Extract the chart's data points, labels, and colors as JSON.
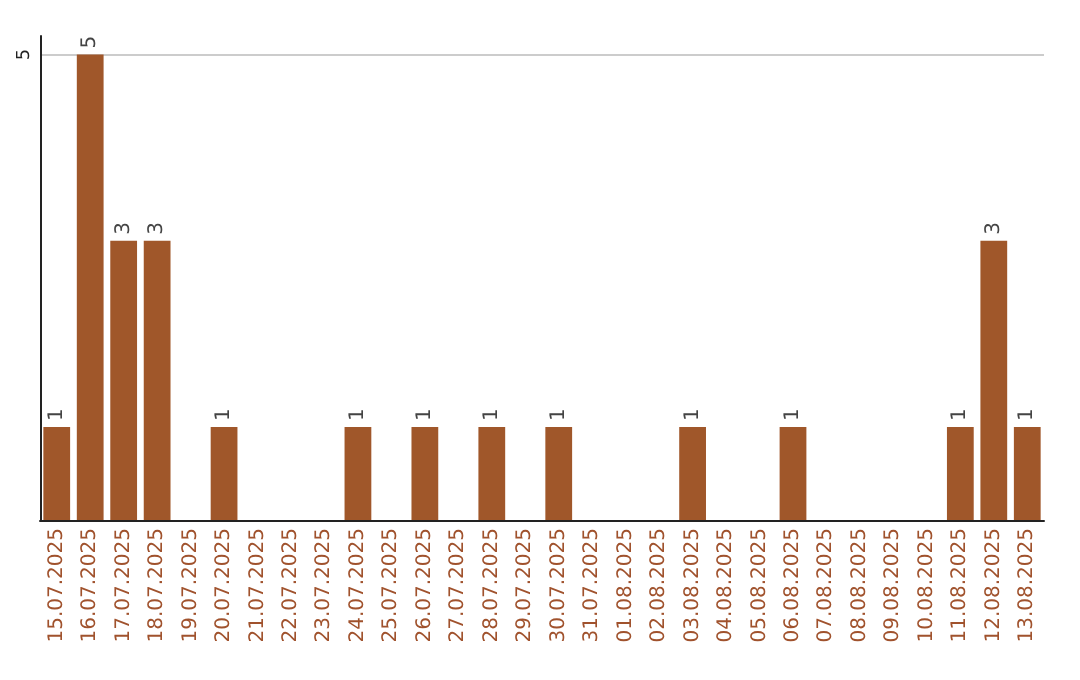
{
  "chart_data": {
    "type": "bar",
    "categories": [
      "15.07.2025",
      "16.07.2025",
      "17.07.2025",
      "18.07.2025",
      "19.07.2025",
      "20.07.2025",
      "21.07.2025",
      "22.07.2025",
      "23.07.2025",
      "24.07.2025",
      "25.07.2025",
      "26.07.2025",
      "27.07.2025",
      "28.07.2025",
      "29.07.2025",
      "30.07.2025",
      "31.07.2025",
      "01.08.2025",
      "02.08.2025",
      "03.08.2025",
      "04.08.2025",
      "05.08.2025",
      "06.08.2025",
      "07.08.2025",
      "08.08.2025",
      "09.08.2025",
      "10.08.2025",
      "11.08.2025",
      "12.08.2025",
      "13.08.2025"
    ],
    "values": [
      1,
      5,
      3,
      3,
      0,
      1,
      0,
      0,
      0,
      1,
      0,
      1,
      0,
      1,
      0,
      1,
      0,
      0,
      0,
      1,
      0,
      0,
      1,
      0,
      0,
      0,
      0,
      1,
      3,
      1
    ],
    "value_labels": [
      "1",
      "5",
      "3",
      "3",
      null,
      "1",
      null,
      null,
      null,
      "1",
      null,
      "1",
      null,
      "1",
      null,
      "1",
      null,
      null,
      null,
      "1",
      null,
      null,
      "1",
      null,
      null,
      null,
      null,
      "1",
      "3",
      "1"
    ],
    "color": "#a0572a",
    "ylim": [
      0,
      5.2
    ],
    "yticks": [
      5
    ],
    "grid": "y"
  }
}
